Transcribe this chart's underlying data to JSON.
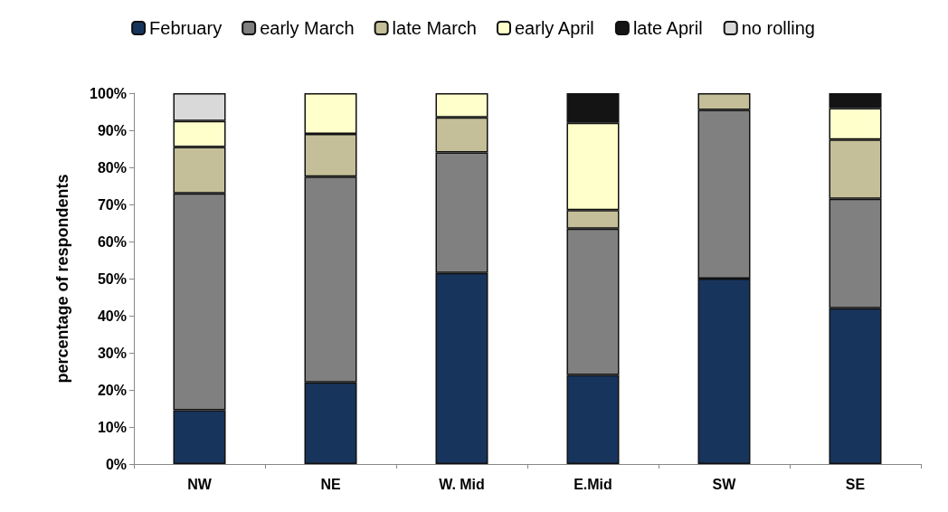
{
  "chart_data": {
    "type": "bar",
    "stacked": true,
    "ylabel": "percentage of respondents",
    "categories": [
      "NW",
      "NE",
      "W. Mid",
      "E.Mid",
      "SW",
      "SE"
    ],
    "series": [
      {
        "name": "February",
        "color": "#17345c",
        "values": [
          14.5,
          22,
          51.5,
          24,
          50,
          42
        ]
      },
      {
        "name": "early March",
        "color": "#808080",
        "values": [
          58.5,
          55.5,
          32.5,
          39.5,
          45.5,
          29.5
        ]
      },
      {
        "name": "late March",
        "color": "#c4bf98",
        "values": [
          12.5,
          11.5,
          9.5,
          5,
          4.5,
          16
        ]
      },
      {
        "name": "early April",
        "color": "#ffffcc",
        "values": [
          7,
          11,
          6.5,
          23.5,
          0,
          8.5
        ]
      },
      {
        "name": "late April",
        "color": "#141414",
        "values": [
          0,
          0,
          0,
          8,
          0,
          4
        ]
      },
      {
        "name": "no rolling",
        "color": "#d9d9d9",
        "values": [
          7.5,
          0,
          0,
          0,
          0,
          0
        ]
      }
    ],
    "ylim": [
      0,
      100
    ],
    "yticks": [
      {
        "value": 0,
        "label": "0%"
      },
      {
        "value": 10,
        "label": "10%"
      },
      {
        "value": 20,
        "label": "20%"
      },
      {
        "value": 30,
        "label": "30%"
      },
      {
        "value": 40,
        "label": "40%"
      },
      {
        "value": 50,
        "label": "50%"
      },
      {
        "value": 60,
        "label": "60%"
      },
      {
        "value": 70,
        "label": "70%"
      },
      {
        "value": 80,
        "label": "80%"
      },
      {
        "value": 90,
        "label": "90%"
      },
      {
        "value": 100,
        "label": "100%"
      }
    ],
    "grid": false,
    "legend": "top"
  }
}
